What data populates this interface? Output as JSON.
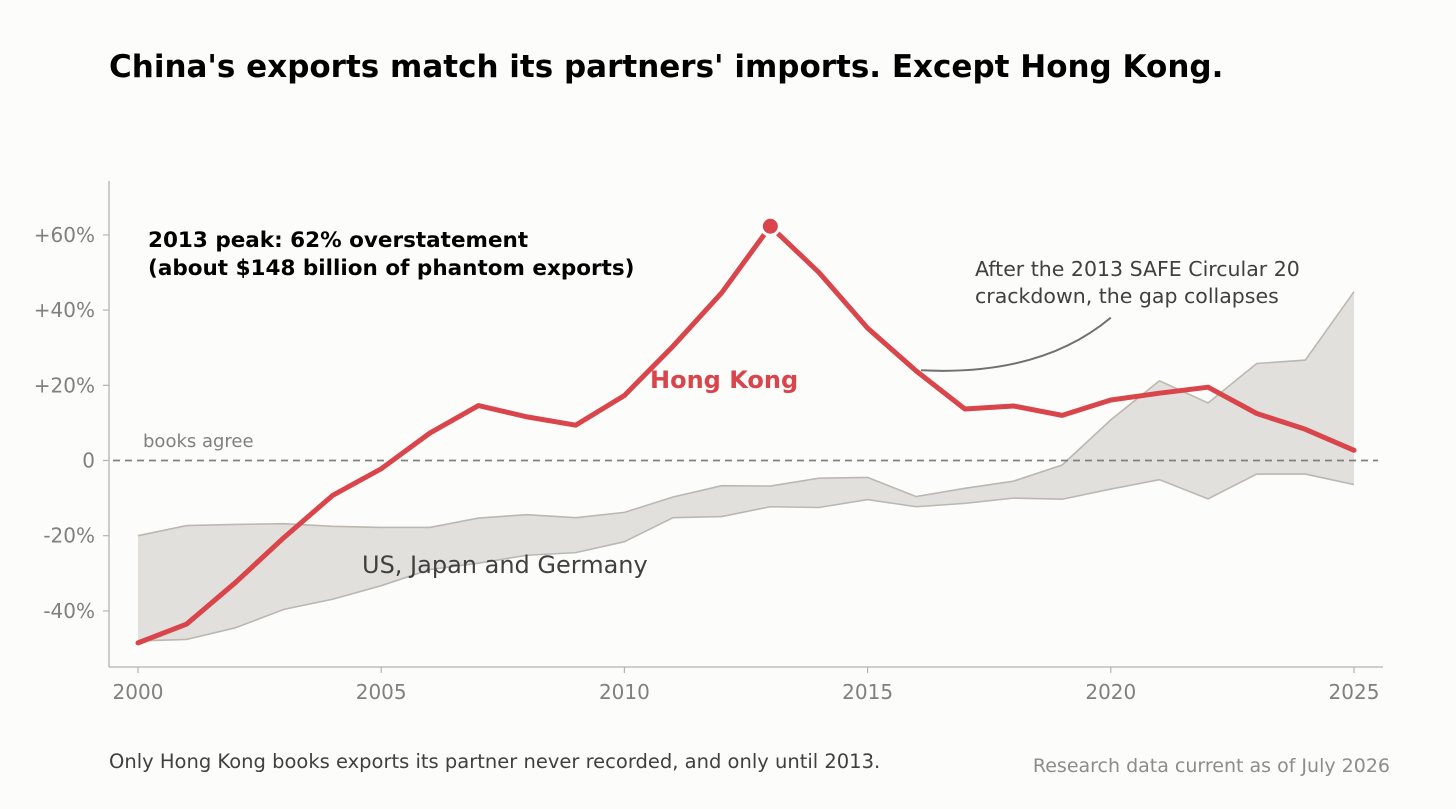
{
  "chart_data": {
    "type": "line",
    "title": "China's exports match its partners' imports. Except Hong Kong.",
    "xlim": [
      2000,
      2025
    ],
    "ylim": [
      -55,
      75
    ],
    "x_ticks": [
      2000,
      2005,
      2010,
      2015,
      2020,
      2025
    ],
    "x_tick_labels": [
      "2000",
      "2005",
      "2010",
      "2015",
      "2020",
      "2025"
    ],
    "y_ticks": [
      -40,
      -20,
      0,
      20,
      40,
      60
    ],
    "y_tick_labels": [
      "-40%",
      "-20%",
      "0",
      "+20%",
      "+40%",
      "+60%"
    ],
    "reference_line": {
      "y": 0,
      "style": "dashed",
      "label": "books agree"
    },
    "x": [
      2000,
      2001,
      2002,
      2003,
      2004,
      2005,
      2006,
      2007,
      2008,
      2009,
      2010,
      2011,
      2012,
      2013,
      2014,
      2015,
      2016,
      2017,
      2018,
      2019,
      2020,
      2021,
      2022,
      2023,
      2024,
      2025
    ],
    "series": [
      {
        "name": "Hong Kong",
        "color": "#d9454a",
        "values": [
          -48.5,
          -43.5,
          -32.5,
          -20.5,
          -9.3,
          -2.2,
          7.3,
          14.6,
          11.6,
          9.4,
          17.3,
          30.4,
          44.6,
          62.3,
          50.0,
          35.2,
          23.8,
          13.7,
          14.5,
          12.0,
          16.1,
          17.9,
          19.5,
          12.5,
          8.3,
          2.7
        ]
      },
      {
        "name": "US, Japan and Germany",
        "type": "band",
        "color": "#e2e0dc",
        "edge_color": "#bcb8b0",
        "upper": [
          -20.0,
          -17.3,
          -17.0,
          -16.8,
          -17.5,
          -17.8,
          -17.8,
          -15.3,
          -14.4,
          -15.2,
          -13.8,
          -9.7,
          -6.7,
          -6.8,
          -4.7,
          -4.5,
          -9.6,
          -7.4,
          -5.5,
          -1.2,
          10.8,
          21.2,
          15.3,
          25.8,
          26.7,
          44.9
        ],
        "lower": [
          -48.0,
          -47.6,
          -44.5,
          -39.6,
          -36.9,
          -33.3,
          -29.0,
          -27.3,
          -25.2,
          -24.5,
          -21.6,
          -15.2,
          -14.9,
          -12.3,
          -12.5,
          -10.4,
          -12.3,
          -11.4,
          -10.0,
          -10.3,
          -7.6,
          -5.1,
          -10.2,
          -3.6,
          -3.6,
          -6.4
        ]
      }
    ],
    "highlight_point": {
      "x": 2013,
      "y": 62.3
    },
    "annotations": {
      "peak_line1": "2013 peak: 62% overstatement",
      "peak_line2": "(about $148 billion of phantom exports)",
      "crackdown_line1": "After the 2013 SAFE Circular 20",
      "crackdown_line2": "crackdown, the gap collapses",
      "arrow_from": {
        "x": 2020,
        "y": 38
      },
      "arrow_to": {
        "x": 2016.1,
        "y": 24.0
      }
    },
    "series_labels": {
      "hong_kong": "Hong Kong",
      "band": "US, Japan and Germany"
    },
    "grid": false
  },
  "footer": {
    "note": "Only Hong Kong books exports its partner never recorded, and only until 2013.",
    "source": "Research data current as of July 2026"
  }
}
